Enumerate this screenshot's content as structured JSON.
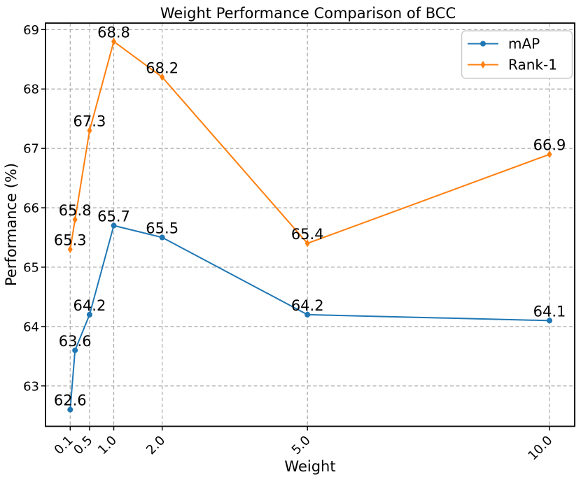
{
  "chart_data": {
    "type": "line",
    "title": "Weight Performance Comparison of BCC",
    "xlabel": "Weight",
    "ylabel": "Performance (%)",
    "x": [
      0.1,
      0.2,
      0.5,
      1.0,
      2.0,
      5.0,
      10.0
    ],
    "series": [
      {
        "name": "mAP",
        "color": "#1f77b4",
        "marker": "circle",
        "values": [
          62.6,
          63.6,
          64.2,
          65.7,
          65.5,
          64.2,
          64.1
        ],
        "point_labels": [
          "62.6",
          "63.6",
          "64.2",
          "65.7",
          "65.5",
          "64.2",
          "64.1"
        ]
      },
      {
        "name": "Rank-1",
        "color": "#ff7f0e",
        "marker": "diamond",
        "values": [
          65.3,
          65.8,
          67.3,
          68.8,
          68.2,
          65.4,
          66.9
        ],
        "point_labels": [
          "65.3",
          "65.8",
          "67.3",
          "68.8",
          "68.2",
          "65.4",
          "66.9"
        ]
      }
    ],
    "xticks": {
      "values": [
        0.1,
        0.5,
        1.0,
        2.0,
        5.0,
        10.0
      ],
      "labels": [
        "0.1",
        "0.5",
        "1.0",
        "2.0",
        "5.0",
        "10.0"
      ],
      "rotation": 45
    },
    "yticks": {
      "values": [
        63,
        64,
        65,
        66,
        67,
        68,
        69
      ],
      "labels": [
        "63",
        "64",
        "65",
        "66",
        "67",
        "68",
        "69"
      ]
    },
    "xlim": [
      -0.41,
      10.52
    ],
    "ylim": [
      62.32,
      69.11
    ],
    "axis_scale": "linear",
    "grid": true,
    "legend_position": "upper right",
    "colors": {
      "grid": "#a6a6a6",
      "spine": "#000000",
      "text": "#000000",
      "legend_border": "#cccccc",
      "background": "#ffffff"
    }
  }
}
